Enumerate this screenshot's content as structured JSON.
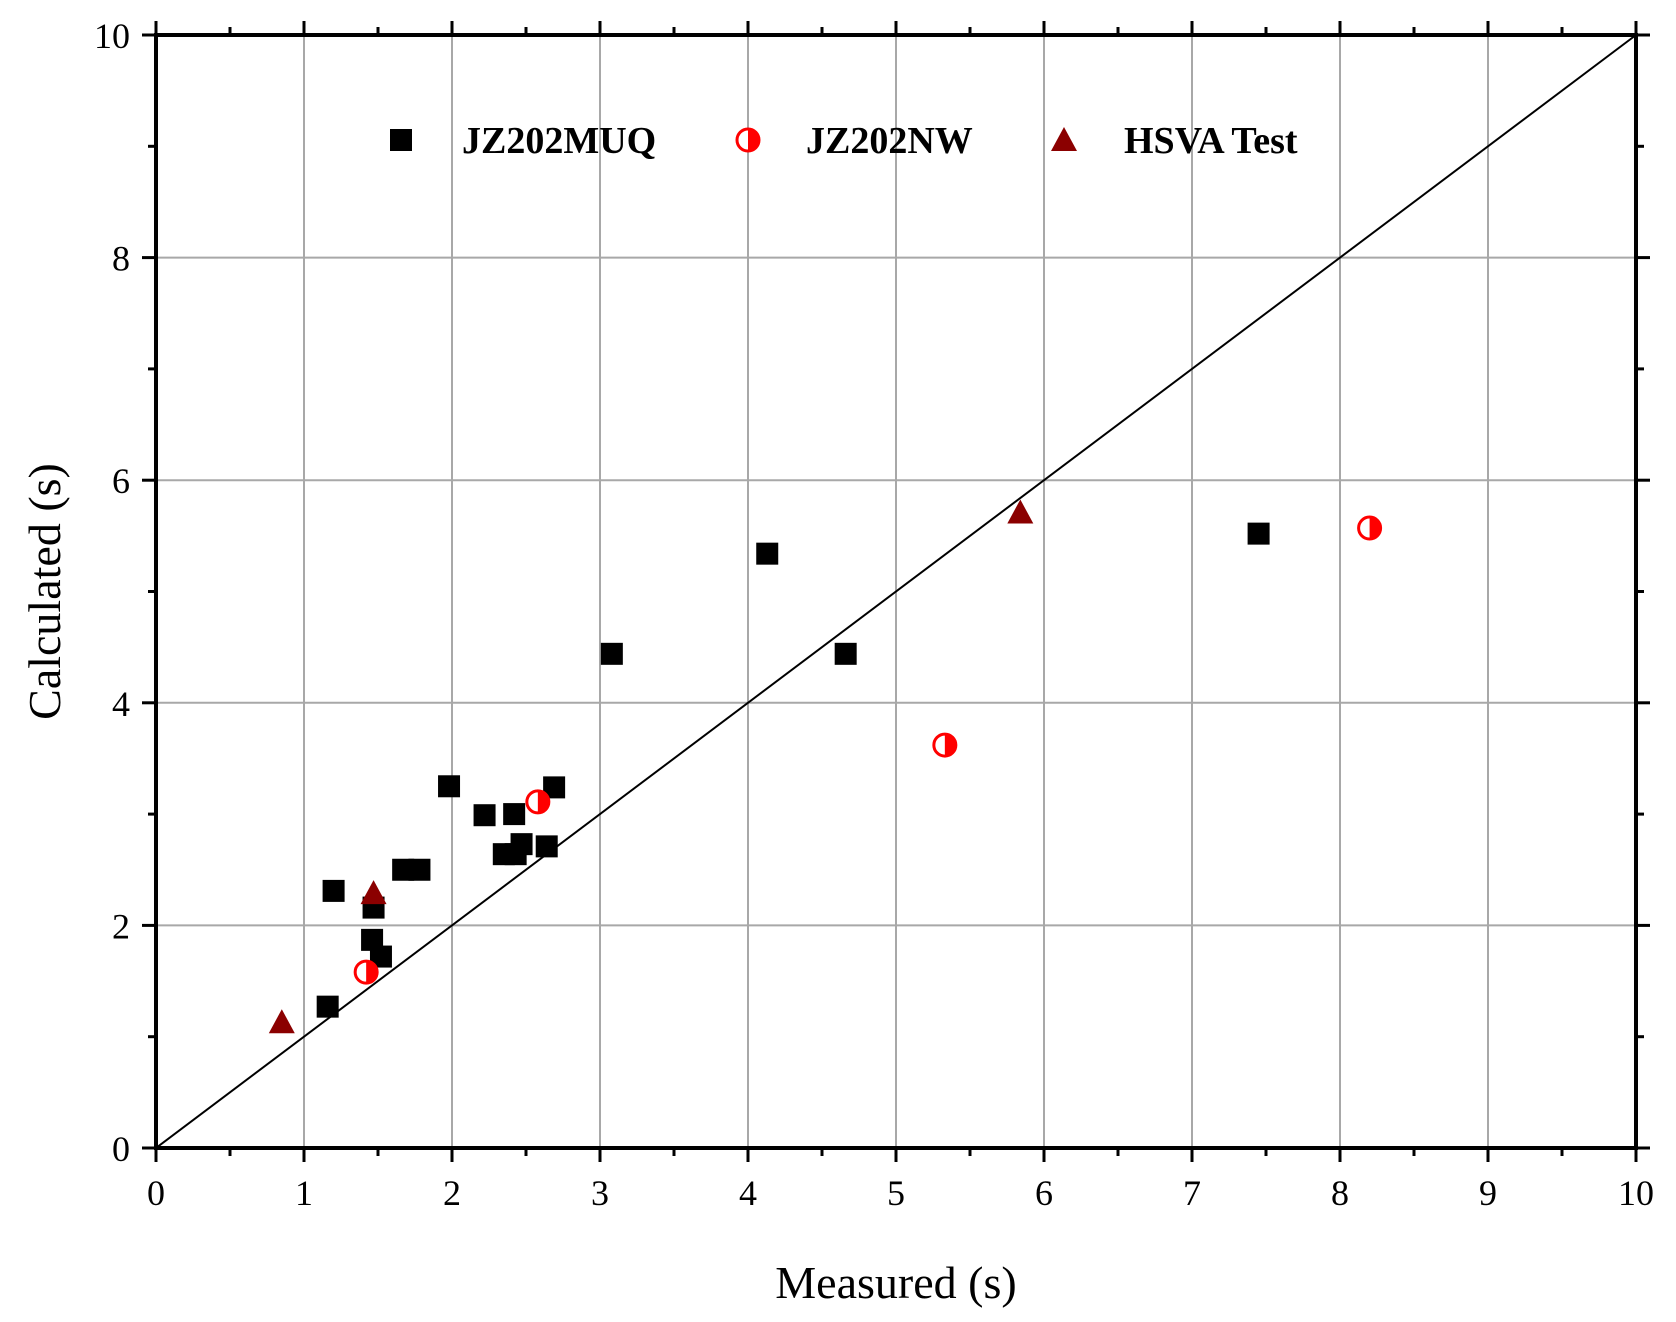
{
  "chart_data": {
    "type": "scatter",
    "title": "",
    "xlabel": "Measured (s)",
    "ylabel": "Calculated (s)",
    "xlim": [
      0,
      10
    ],
    "ylim": [
      0,
      10
    ],
    "xticks": [
      0,
      1,
      2,
      3,
      4,
      5,
      6,
      7,
      8,
      9,
      10
    ],
    "yticks": [
      0,
      2,
      4,
      6,
      8,
      10
    ],
    "grid": true,
    "legend_position": "top",
    "reference_line": {
      "name": "y = x",
      "x": [
        0,
        10
      ],
      "y": [
        0,
        10
      ],
      "color": "#000000"
    },
    "series": [
      {
        "name": "JZ202MUQ",
        "marker": "square",
        "color": "#000000",
        "points": [
          [
            1.16,
            1.27
          ],
          [
            1.2,
            2.31
          ],
          [
            1.47,
            2.16
          ],
          [
            1.46,
            1.87
          ],
          [
            1.52,
            1.72
          ],
          [
            1.67,
            2.5
          ],
          [
            1.78,
            2.5
          ],
          [
            1.98,
            3.25
          ],
          [
            2.22,
            2.99
          ],
          [
            2.42,
            3.0
          ],
          [
            2.35,
            2.64
          ],
          [
            2.43,
            2.64
          ],
          [
            2.47,
            2.73
          ],
          [
            2.64,
            2.71
          ],
          [
            2.69,
            3.24
          ],
          [
            3.08,
            4.44
          ],
          [
            4.13,
            5.34
          ],
          [
            4.66,
            4.44
          ],
          [
            7.45,
            5.52
          ]
        ]
      },
      {
        "name": "JZ202NW",
        "marker": "half-circle",
        "color": "#ff0000",
        "points": [
          [
            1.42,
            1.58
          ],
          [
            2.58,
            3.11
          ],
          [
            5.33,
            3.62
          ],
          [
            8.2,
            5.57
          ]
        ]
      },
      {
        "name": "HSVA Test",
        "marker": "triangle",
        "color": "#8b0000",
        "points": [
          [
            0.85,
            1.13
          ],
          [
            1.47,
            2.29
          ],
          [
            5.84,
            5.71
          ]
        ]
      }
    ]
  }
}
